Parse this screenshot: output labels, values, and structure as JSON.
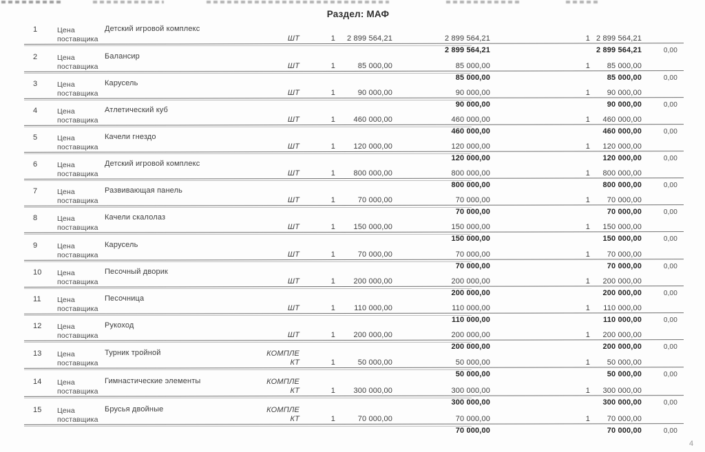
{
  "page": {
    "title": "Раздел: МАФ",
    "page_number": "4"
  },
  "table": {
    "price_type_line1": "Цена",
    "price_type_line2": "поставщика",
    "rows": [
      {
        "num": "1",
        "name": "Детский игровой комплекс",
        "unit_top": "",
        "unit_bottom": "ШТ",
        "qty": "1",
        "price": "2 899 564,21",
        "total": "2 899 564,21",
        "qty2": "1",
        "price2": "2 899 564,21",
        "subtotal": "2 899 564,21",
        "subtotal2": "2 899 564,21",
        "diff": "0,00"
      },
      {
        "num": "2",
        "name": "Балансир",
        "unit_top": "",
        "unit_bottom": "ШТ",
        "qty": "1",
        "price": "85 000,00",
        "total": "85 000,00",
        "qty2": "1",
        "price2": "85 000,00",
        "subtotal": "85 000,00",
        "subtotal2": "85 000,00",
        "diff": "0,00"
      },
      {
        "num": "3",
        "name": "Карусель",
        "unit_top": "",
        "unit_bottom": "ШТ",
        "qty": "1",
        "price": "90 000,00",
        "total": "90 000,00",
        "qty2": "1",
        "price2": "90 000,00",
        "subtotal": "90 000,00",
        "subtotal2": "90 000,00",
        "diff": "0,00"
      },
      {
        "num": "4",
        "name": "Атлетический куб",
        "unit_top": "",
        "unit_bottom": "ШТ",
        "qty": "1",
        "price": "460 000,00",
        "total": "460 000,00",
        "qty2": "1",
        "price2": "460 000,00",
        "subtotal": "460 000,00",
        "subtotal2": "460 000,00",
        "diff": "0,00"
      },
      {
        "num": "5",
        "name": "Качели гнездо",
        "unit_top": "",
        "unit_bottom": "ШТ",
        "qty": "1",
        "price": "120 000,00",
        "total": "120 000,00",
        "qty2": "1",
        "price2": "120 000,00",
        "subtotal": "120 000,00",
        "subtotal2": "120 000,00",
        "diff": "0,00"
      },
      {
        "num": "6",
        "name": "Детский игровой комплекс",
        "unit_top": "",
        "unit_bottom": "ШТ",
        "qty": "1",
        "price": "800 000,00",
        "total": "800 000,00",
        "qty2": "1",
        "price2": "800 000,00",
        "subtotal": "800 000,00",
        "subtotal2": "800 000,00",
        "diff": "0,00"
      },
      {
        "num": "7",
        "name": "Развивающая панель",
        "unit_top": "",
        "unit_bottom": "ШТ",
        "qty": "1",
        "price": "70 000,00",
        "total": "70 000,00",
        "qty2": "1",
        "price2": "70 000,00",
        "subtotal": "70 000,00",
        "subtotal2": "70 000,00",
        "diff": "0,00"
      },
      {
        "num": "8",
        "name": "Качели скалолаз",
        "unit_top": "",
        "unit_bottom": "ШТ",
        "qty": "1",
        "price": "150 000,00",
        "total": "150 000,00",
        "qty2": "1",
        "price2": "150 000,00",
        "subtotal": "150 000,00",
        "subtotal2": "150 000,00",
        "diff": "0,00"
      },
      {
        "num": "9",
        "name": "Карусель",
        "unit_top": "",
        "unit_bottom": "ШТ",
        "qty": "1",
        "price": "70 000,00",
        "total": "70 000,00",
        "qty2": "1",
        "price2": "70 000,00",
        "subtotal": "70 000,00",
        "subtotal2": "70 000,00",
        "diff": "0,00"
      },
      {
        "num": "10",
        "name": "Песочный дворик",
        "unit_top": "",
        "unit_bottom": "ШТ",
        "qty": "1",
        "price": "200 000,00",
        "total": "200 000,00",
        "qty2": "1",
        "price2": "200 000,00",
        "subtotal": "200 000,00",
        "subtotal2": "200 000,00",
        "diff": "0,00"
      },
      {
        "num": "11",
        "name": "Песочница",
        "unit_top": "",
        "unit_bottom": "ШТ",
        "qty": "1",
        "price": "110 000,00",
        "total": "110 000,00",
        "qty2": "1",
        "price2": "110 000,00",
        "subtotal": "110 000,00",
        "subtotal2": "110 000,00",
        "diff": "0,00"
      },
      {
        "num": "12",
        "name": "Рукоход",
        "unit_top": "",
        "unit_bottom": "ШТ",
        "qty": "1",
        "price": "200 000,00",
        "total": "200 000,00",
        "qty2": "1",
        "price2": "200 000,00",
        "subtotal": "200 000,00",
        "subtotal2": "200 000,00",
        "diff": "0,00"
      },
      {
        "num": "13",
        "name": "Турник тройной",
        "unit_top": "КОМПЛЕ",
        "unit_bottom": "КТ",
        "qty": "1",
        "price": "50 000,00",
        "total": "50 000,00",
        "qty2": "1",
        "price2": "50 000,00",
        "subtotal": "50 000,00",
        "subtotal2": "50 000,00",
        "diff": "0,00"
      },
      {
        "num": "14",
        "name": "Гимнастические элементы",
        "unit_top": "КОМПЛЕ",
        "unit_bottom": "КТ",
        "qty": "1",
        "price": "300 000,00",
        "total": "300 000,00",
        "qty2": "1",
        "price2": "300 000,00",
        "subtotal": "300 000,00",
        "subtotal2": "300 000,00",
        "diff": "0,00"
      },
      {
        "num": "15",
        "name": "Брусья двойные",
        "unit_top": "КОМПЛЕ",
        "unit_bottom": "КТ",
        "qty": "1",
        "price": "70 000,00",
        "total": "70 000,00",
        "qty2": "1",
        "price2": "70 000,00",
        "subtotal": "70 000,00",
        "subtotal2": "70 000,00",
        "diff": "0,00"
      }
    ]
  }
}
